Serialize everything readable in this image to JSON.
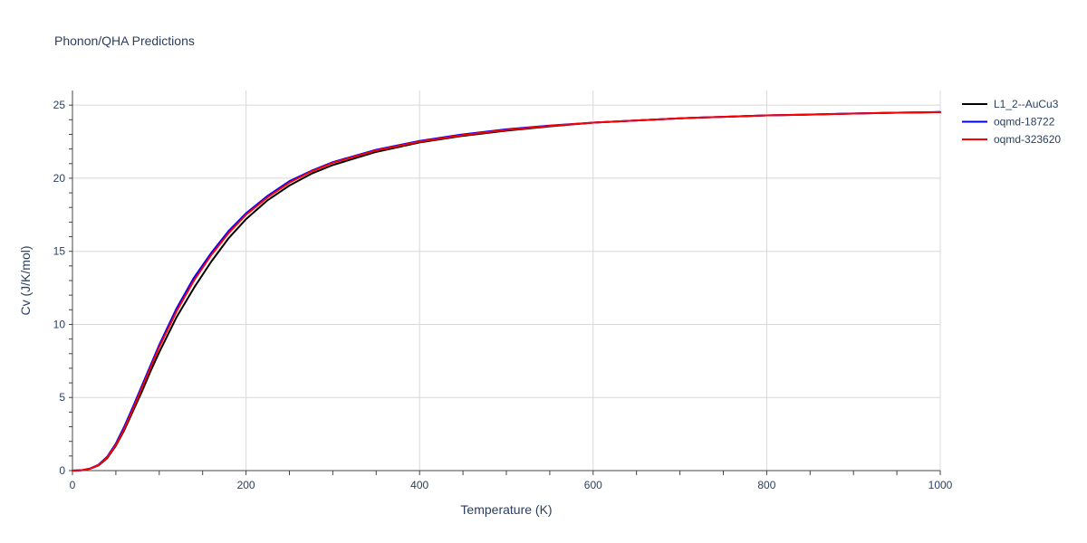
{
  "chart_data": {
    "type": "line",
    "title": "Phonon/QHA Predictions",
    "xlabel": "Temperature (K)",
    "ylabel": "Cv (J/K/mol)",
    "xlim": [
      0,
      1000
    ],
    "ylim": [
      0,
      26
    ],
    "xticks": [
      0,
      200,
      400,
      600,
      800,
      1000
    ],
    "yticks": [
      0,
      5,
      10,
      15,
      20,
      25
    ],
    "grid": true,
    "legend_position": "top-right",
    "series": [
      {
        "name": "L1_2--AuCu3",
        "color": "#000000",
        "x": [
          0,
          10,
          20,
          30,
          40,
          50,
          60,
          70,
          80,
          90,
          100,
          120,
          140,
          160,
          180,
          200,
          225,
          250,
          275,
          300,
          350,
          400,
          450,
          500,
          550,
          600,
          650,
          700,
          750,
          800,
          850,
          900,
          950,
          1000
        ],
        "y": [
          0,
          0.02,
          0.12,
          0.35,
          0.85,
          1.7,
          2.8,
          4.1,
          5.4,
          6.8,
          8.1,
          10.5,
          12.5,
          14.3,
          15.9,
          17.2,
          18.5,
          19.5,
          20.3,
          20.9,
          21.8,
          22.45,
          22.9,
          23.25,
          23.55,
          23.8,
          23.95,
          24.1,
          24.2,
          24.3,
          24.35,
          24.42,
          24.48,
          24.52
        ]
      },
      {
        "name": "oqmd-18722",
        "color": "#0000ff",
        "x": [
          0,
          10,
          20,
          30,
          40,
          50,
          60,
          70,
          80,
          90,
          100,
          120,
          140,
          160,
          180,
          200,
          225,
          250,
          275,
          300,
          350,
          400,
          450,
          500,
          550,
          600,
          650,
          700,
          750,
          800,
          850,
          900,
          950,
          1000
        ],
        "y": [
          0,
          0.02,
          0.14,
          0.4,
          0.95,
          1.85,
          3.05,
          4.4,
          5.8,
          7.2,
          8.6,
          11.1,
          13.2,
          14.9,
          16.4,
          17.6,
          18.8,
          19.8,
          20.5,
          21.1,
          21.95,
          22.55,
          23.0,
          23.35,
          23.6,
          23.8,
          23.95,
          24.1,
          24.2,
          24.3,
          24.36,
          24.43,
          24.48,
          24.53
        ]
      },
      {
        "name": "oqmd-323620",
        "color": "#ff0000",
        "x": [
          0,
          10,
          20,
          30,
          40,
          50,
          60,
          70,
          80,
          90,
          100,
          120,
          140,
          160,
          180,
          200,
          225,
          250,
          275,
          300,
          350,
          400,
          450,
          500,
          550,
          600,
          650,
          700,
          750,
          800,
          850,
          900,
          950,
          1000
        ],
        "y": [
          0,
          0.02,
          0.13,
          0.37,
          0.9,
          1.75,
          2.9,
          4.25,
          5.65,
          7.05,
          8.45,
          10.9,
          13.0,
          14.75,
          16.25,
          17.5,
          18.7,
          19.7,
          20.45,
          21.05,
          21.9,
          22.5,
          22.95,
          23.3,
          23.58,
          23.8,
          23.95,
          24.1,
          24.2,
          24.3,
          24.35,
          24.42,
          24.48,
          24.52
        ]
      }
    ]
  }
}
